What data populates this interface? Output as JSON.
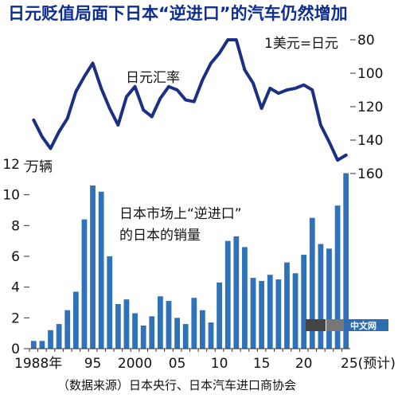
{
  "chart_data": {
    "type": "bar+line",
    "title": "日元贬值局面下日本“逆进口”的汽车仍然增加",
    "source": "（数据来源）日本央行、日本汽车进口商协会",
    "x_labels": [
      "1988年",
      "95",
      "2000",
      "05",
      "10",
      "15",
      "20",
      "25(预计)"
    ],
    "years": [
      1988,
      1989,
      1990,
      1991,
      1992,
      1993,
      1994,
      1995,
      1996,
      1997,
      1998,
      1999,
      2000,
      2001,
      2002,
      2003,
      2004,
      2005,
      2006,
      2007,
      2008,
      2009,
      2010,
      2011,
      2012,
      2013,
      2014,
      2015,
      2016,
      2017,
      2018,
      2019,
      2020,
      2021,
      2022,
      2023,
      2024,
      2025
    ],
    "bar_series": {
      "name": "日本市场上“逆进口”的日本的销量",
      "unit": "万辆",
      "values": [
        0.5,
        0.5,
        1.2,
        1.6,
        2.5,
        3.7,
        8.4,
        10.6,
        10.2,
        6.0,
        2.9,
        3.2,
        2.3,
        1.5,
        2.1,
        3.4,
        3.1,
        2.0,
        1.6,
        3.3,
        2.5,
        1.7,
        4.3,
        7.0,
        7.3,
        6.6,
        4.6,
        4.4,
        4.8,
        4.5,
        5.6,
        4.9,
        6.1,
        8.5,
        6.8,
        6.5,
        9.3,
        11.4
      ],
      "ylim": [
        0,
        12
      ],
      "yticks": [
        0,
        2,
        4,
        6,
        8,
        10,
        12
      ],
      "color": "#2f72b9"
    },
    "line_series": {
      "name": "日元汇率",
      "unit": "1美元=日元",
      "values": [
        128,
        138,
        145,
        135,
        127,
        111,
        102,
        94,
        109,
        121,
        131,
        114,
        108,
        122,
        126,
        115,
        108,
        110,
        116,
        117,
        104,
        94,
        88,
        80,
        80,
        98,
        106,
        121,
        109,
        112,
        110,
        109,
        107,
        110,
        131,
        141,
        152,
        149
      ],
      "ylim_inverted": [
        80,
        160
      ],
      "yticks": [
        80,
        100,
        120,
        140,
        160
      ],
      "color": "#1c2f86"
    },
    "annotations": {
      "line_label": "日元汇率",
      "bar_label_line1": "日本市场上“逆进口”",
      "bar_label_line2": "的日本的销量"
    },
    "watermark": "中文网"
  }
}
